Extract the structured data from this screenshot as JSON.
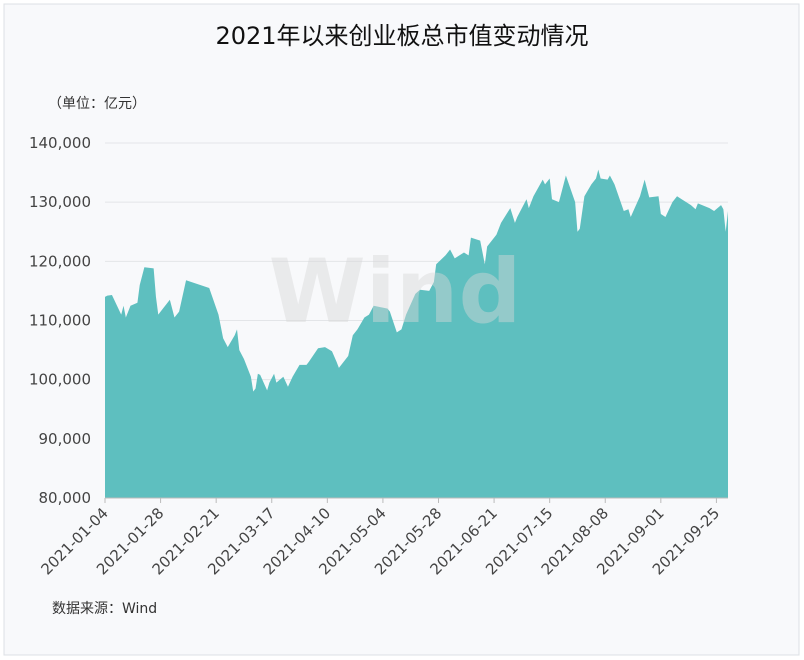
{
  "chart_data": {
    "type": "area",
    "title": "2021年以来创业板总市值变动情况",
    "unit_label": "（单位：亿元）",
    "source": "数据来源：Wind",
    "watermark": "Wind",
    "color": "#5ebfbf",
    "grid": true,
    "x": [
      "2021-01-04",
      "2021-01-05",
      "2021-01-07",
      "2021-01-11",
      "2021-01-12",
      "2021-01-13",
      "2021-01-15",
      "2021-01-18",
      "2021-01-19",
      "2021-01-21",
      "2021-01-25",
      "2021-01-26",
      "2021-01-27",
      "2021-01-29",
      "2021-02-01",
      "2021-02-03",
      "2021-02-05",
      "2021-02-08",
      "2021-02-18",
      "2021-02-22",
      "2021-02-24",
      "2021-02-26",
      "2021-03-01",
      "2021-03-02",
      "2021-03-03",
      "2021-03-05",
      "2021-03-08",
      "2021-03-09",
      "2021-03-10",
      "2021-03-11",
      "2021-03-12",
      "2021-03-15",
      "2021-03-16",
      "2021-03-18",
      "2021-03-19",
      "2021-03-22",
      "2021-03-24",
      "2021-03-26",
      "2021-03-29",
      "2021-04-01",
      "2021-04-02",
      "2021-04-06",
      "2021-04-09",
      "2021-04-12",
      "2021-04-14",
      "2021-04-15",
      "2021-04-19",
      "2021-04-21",
      "2021-04-23",
      "2021-04-26",
      "2021-04-28",
      "2021-04-30",
      "2021-05-06",
      "2021-05-07",
      "2021-05-10",
      "2021-05-12",
      "2021-05-14",
      "2021-05-18",
      "2021-05-20",
      "2021-05-24",
      "2021-05-26",
      "2021-05-27",
      "2021-05-31",
      "2021-06-02",
      "2021-06-04",
      "2021-06-08",
      "2021-06-10",
      "2021-06-11",
      "2021-06-15",
      "2021-06-17",
      "2021-06-18",
      "2021-06-22",
      "2021-06-24",
      "2021-06-28",
      "2021-06-30",
      "2021-07-01",
      "2021-07-05",
      "2021-07-06",
      "2021-07-08",
      "2021-07-12",
      "2021-07-13",
      "2021-07-15",
      "2021-07-16",
      "2021-07-19",
      "2021-07-22",
      "2021-07-26",
      "2021-07-27",
      "2021-07-28",
      "2021-07-30",
      "2021-08-02",
      "2021-08-04",
      "2021-08-05",
      "2021-08-06",
      "2021-08-09",
      "2021-08-10",
      "2021-08-12",
      "2021-08-16",
      "2021-08-18",
      "2021-08-19",
      "2021-08-23",
      "2021-08-25",
      "2021-08-27",
      "2021-08-31",
      "2021-09-01",
      "2021-09-03",
      "2021-09-06",
      "2021-09-08",
      "2021-09-10",
      "2021-09-14",
      "2021-09-16",
      "2021-09-17",
      "2021-09-22",
      "2021-09-24",
      "2021-09-27",
      "2021-09-28",
      "2021-09-29",
      "2021-09-30"
    ],
    "values": [
      114000,
      114200,
      114300,
      111000,
      112500,
      110500,
      112500,
      113000,
      116000,
      119000,
      118800,
      114000,
      111000,
      112000,
      113500,
      110500,
      111500,
      116800,
      115500,
      111000,
      107000,
      105500,
      107500,
      108500,
      105000,
      103500,
      100500,
      98000,
      98500,
      101000,
      100800,
      98200,
      99500,
      101000,
      99500,
      100500,
      98800,
      100500,
      102500,
      102500,
      103000,
      105300,
      105500,
      104800,
      103000,
      102000,
      104000,
      107500,
      108500,
      110500,
      111000,
      112500,
      112000,
      111500,
      108000,
      108500,
      111000,
      114500,
      115200,
      115000,
      116500,
      119500,
      121000,
      122000,
      120500,
      121500,
      121000,
      124000,
      123500,
      119500,
      122500,
      124500,
      126500,
      129000,
      126500,
      127500,
      130500,
      129000,
      131000,
      133800,
      133000,
      134000,
      130500,
      130000,
      134500,
      130000,
      125000,
      125500,
      131000,
      133000,
      134000,
      135500,
      134000,
      133800,
      134500,
      133000,
      128500,
      128800,
      127500,
      131000,
      133800,
      130800,
      131000,
      128000,
      127500,
      130000,
      131000,
      130500,
      129500,
      128800,
      129800,
      129000,
      128500,
      129500,
      128800,
      125000,
      128500
    ],
    "xlim": [
      "2021-01-04",
      "2021-09-30"
    ],
    "xticks": [
      "2021-01-04",
      "2021-01-28",
      "2021-02-21",
      "2021-03-17",
      "2021-04-10",
      "2021-05-04",
      "2021-05-28",
      "2021-06-21",
      "2021-07-15",
      "2021-08-08",
      "2021-09-01",
      "2021-09-25"
    ],
    "ylim": [
      80000,
      140000
    ],
    "yticks": [
      {
        "value": 80000,
        "label": "80,000"
      },
      {
        "value": 90000,
        "label": "90,000"
      },
      {
        "value": 100000,
        "label": "100,000"
      },
      {
        "value": 110000,
        "label": "110,000"
      },
      {
        "value": 120000,
        "label": "120,000"
      },
      {
        "value": 130000,
        "label": "130,000"
      },
      {
        "value": 140000,
        "label": "140,000"
      }
    ]
  }
}
